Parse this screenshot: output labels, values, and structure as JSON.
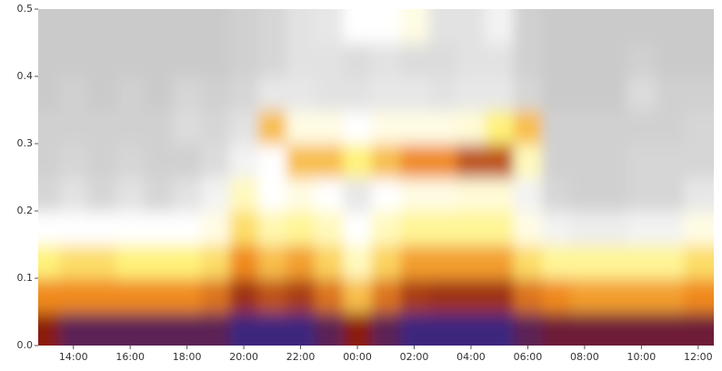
{
  "chart_data": {
    "type": "heatmap",
    "x": [
      13,
      14,
      15,
      16,
      17,
      18,
      19,
      20,
      21,
      22,
      23,
      24,
      25,
      26,
      27,
      28,
      29,
      30,
      31,
      32,
      33,
      34,
      35,
      36
    ],
    "y": [
      0.025,
      0.075,
      0.125,
      0.175,
      0.225,
      0.275,
      0.325,
      0.375,
      0.425,
      0.475
    ],
    "z": [
      [
        4,
        4.5,
        4.5,
        4.5,
        4.5,
        4.5,
        4.5,
        4.8,
        4.8,
        4.8,
        4.5,
        4,
        4.5,
        4.8,
        4.8,
        4.8,
        4.8,
        4.5,
        4.3,
        4.3,
        4.3,
        4.3,
        4.3,
        4.3
      ],
      [
        3,
        3,
        3,
        3,
        3,
        3,
        3.2,
        3.8,
        3.5,
        3.7,
        3.2,
        2.5,
        3.2,
        3.7,
        3.8,
        3.8,
        3.8,
        3.2,
        3,
        2.8,
        2.8,
        2.8,
        2.8,
        3
      ],
      [
        2,
        2.2,
        2.2,
        2,
        2,
        2,
        2.2,
        3,
        2.5,
        2.8,
        2.3,
        1.5,
        2.3,
        2.8,
        2.8,
        2.8,
        2.8,
        2.2,
        1.8,
        1.8,
        1.8,
        1.8,
        1.8,
        2.2
      ],
      [
        1,
        1,
        1,
        1,
        1,
        1,
        1.2,
        2.2,
        1.6,
        1.8,
        1.5,
        1,
        1.5,
        1.8,
        1.8,
        1.8,
        1.8,
        1.2,
        0.8,
        0.7,
        0.7,
        0.8,
        0.8,
        1.2
      ],
      [
        0.3,
        0.5,
        0.3,
        0.5,
        0.3,
        0.5,
        0.8,
        1.5,
        1,
        1.2,
        1,
        0.6,
        1,
        1.2,
        1.2,
        1.3,
        1.3,
        0.8,
        0.3,
        0.2,
        0.2,
        0.3,
        0.3,
        0.6
      ],
      [
        0.2,
        0.3,
        0.2,
        0.3,
        0.2,
        0.2,
        0.4,
        0.8,
        1,
        2.5,
        2.5,
        2,
        2.5,
        3,
        3,
        3.5,
        3.5,
        1.5,
        0.2,
        0.2,
        0.2,
        0.3,
        0.3,
        0.3
      ],
      [
        0.2,
        0.2,
        0.2,
        0.2,
        0.2,
        0.4,
        0.3,
        0.5,
        2.5,
        1.2,
        1.2,
        1,
        1.2,
        1.2,
        1.2,
        1.3,
        2,
        2.5,
        0.2,
        0.2,
        0.2,
        0.2,
        0.2,
        0.3
      ],
      [
        0.1,
        0.2,
        0.1,
        0.2,
        0.1,
        0.3,
        0.2,
        0.3,
        0.6,
        0.6,
        0.5,
        0.5,
        0.6,
        0.6,
        0.5,
        0.6,
        0.6,
        0.3,
        0.1,
        0.1,
        0.1,
        0.4,
        0.2,
        0.2
      ],
      [
        0.1,
        0.1,
        0.1,
        0.1,
        0.1,
        0.1,
        0.1,
        0.2,
        0.3,
        0.5,
        0.5,
        0.4,
        0.5,
        0.4,
        0.4,
        0.5,
        0.5,
        0.2,
        0.1,
        0.1,
        0.1,
        0.2,
        0.1,
        0.1
      ],
      [
        0.1,
        0.1,
        0.1,
        0.1,
        0.1,
        0.1,
        0.1,
        0.2,
        0.3,
        0.5,
        0.6,
        1,
        1,
        1.2,
        0.5,
        0.5,
        0.8,
        0.2,
        0.1,
        0.1,
        0.1,
        0.1,
        0.1,
        0.1
      ]
    ],
    "colors": [
      "#c4c4c4",
      "#ffffff",
      "#fff27a",
      "#f08a1c",
      "#8b1a10",
      "#2a2a9a"
    ],
    "xlim": [
      12.76,
      36.55
    ],
    "ylim": [
      0,
      0.5
    ],
    "xticks": [
      {
        "value": 14,
        "label": "14:00"
      },
      {
        "value": 16,
        "label": "16:00"
      },
      {
        "value": 18,
        "label": "18:00"
      },
      {
        "value": 20,
        "label": "20:00"
      },
      {
        "value": 22,
        "label": "22:00"
      },
      {
        "value": 24,
        "label": "00:00"
      },
      {
        "value": 26,
        "label": "02:00"
      },
      {
        "value": 28,
        "label": "04:00"
      },
      {
        "value": 30,
        "label": "06:00"
      },
      {
        "value": 32,
        "label": "08:00"
      },
      {
        "value": 34,
        "label": "10:00"
      },
      {
        "value": 36,
        "label": "12:00"
      }
    ],
    "yticks": [
      {
        "value": 0,
        "label": "0.0"
      },
      0.1,
      0.2,
      0.3,
      0.4,
      0.5
    ]
  }
}
